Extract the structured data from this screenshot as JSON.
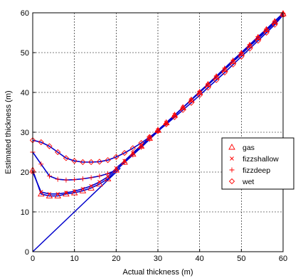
{
  "chart_data": {
    "type": "line",
    "title": "",
    "xlabel": "Actual thickness (m)",
    "ylabel": "Estimated thickness (m)",
    "xlim": [
      0,
      60
    ],
    "ylim": [
      0,
      60
    ],
    "xticks": [
      0,
      10,
      20,
      30,
      40,
      50,
      60
    ],
    "yticks": [
      0,
      10,
      20,
      30,
      40,
      50,
      60
    ],
    "grid": "dashed",
    "legend_position": "right",
    "line_color": "#0000cc",
    "marker_color": "#ff0000",
    "reference_line": {
      "x": [
        0,
        21
      ],
      "y": [
        0,
        21
      ]
    },
    "series": [
      {
        "name": "gas",
        "marker": "triangle",
        "x": [
          0,
          2,
          4,
          6,
          8,
          10,
          12,
          14,
          16,
          18,
          20,
          22,
          24,
          26,
          28,
          30,
          32,
          34,
          36,
          38,
          40,
          42,
          44,
          46,
          48,
          50,
          52,
          54,
          56,
          58,
          60
        ],
        "y": [
          20.5,
          14.5,
          14.0,
          14.0,
          14.5,
          14.8,
          15.3,
          16.0,
          17.0,
          18.3,
          20.5,
          22.5,
          24.5,
          26.5,
          28.5,
          30.5,
          32.4,
          34.3,
          36.2,
          38.1,
          40.0,
          42.0,
          43.9,
          45.8,
          47.8,
          49.8,
          51.8,
          53.8,
          55.8,
          57.8,
          59.8
        ]
      },
      {
        "name": "fizzshallow",
        "marker": "x",
        "x": [
          0,
          2,
          4,
          6,
          8,
          10,
          12,
          14,
          16,
          18,
          20,
          22,
          24,
          26,
          28,
          30,
          32,
          34,
          36,
          38,
          40,
          42,
          44,
          46,
          48,
          50,
          52,
          54,
          56,
          58,
          60
        ],
        "y": [
          20.0,
          15.0,
          14.5,
          14.5,
          14.8,
          15.2,
          15.8,
          16.5,
          17.5,
          18.8,
          21.0,
          22.8,
          24.8,
          26.7,
          28.6,
          30.5,
          32.4,
          34.3,
          36.2,
          38.1,
          40.0,
          41.9,
          43.8,
          45.7,
          47.7,
          49.6,
          51.6,
          53.5,
          55.5,
          57.4,
          59.4
        ]
      },
      {
        "name": "fizzdeep",
        "marker": "plus",
        "x": [
          0,
          2,
          4,
          6,
          8,
          10,
          12,
          14,
          16,
          18,
          20,
          22,
          24,
          26,
          28,
          30,
          32,
          34,
          36,
          38,
          40,
          42,
          44,
          46,
          48,
          50,
          52,
          54,
          56,
          58,
          60
        ],
        "y": [
          25.0,
          22.0,
          19.0,
          18.2,
          18.0,
          18.1,
          18.3,
          18.6,
          19.0,
          19.6,
          20.5,
          22.4,
          24.3,
          26.2,
          28.2,
          30.2,
          32.2,
          34.2,
          36.2,
          38.2,
          40.2,
          42.1,
          44.1,
          46.1,
          48.1,
          50.0,
          52.0,
          54.0,
          55.9,
          57.9,
          59.9
        ]
      },
      {
        "name": "wet",
        "marker": "diamond",
        "x": [
          0,
          2,
          4,
          6,
          8,
          10,
          12,
          14,
          16,
          18,
          20,
          22,
          24,
          26,
          28,
          30,
          32,
          34,
          36,
          38,
          40,
          42,
          44,
          46,
          48,
          50,
          52,
          54,
          56,
          58,
          60
        ],
        "y": [
          28.0,
          27.5,
          26.5,
          25.0,
          23.5,
          22.8,
          22.5,
          22.5,
          22.6,
          23.0,
          23.8,
          24.8,
          26.0,
          27.3,
          28.8,
          30.3,
          32.0,
          33.8,
          35.6,
          37.4,
          39.3,
          41.2,
          43.1,
          45.0,
          47.0,
          49.0,
          51.0,
          53.0,
          55.0,
          57.0,
          59.5
        ]
      }
    ]
  }
}
